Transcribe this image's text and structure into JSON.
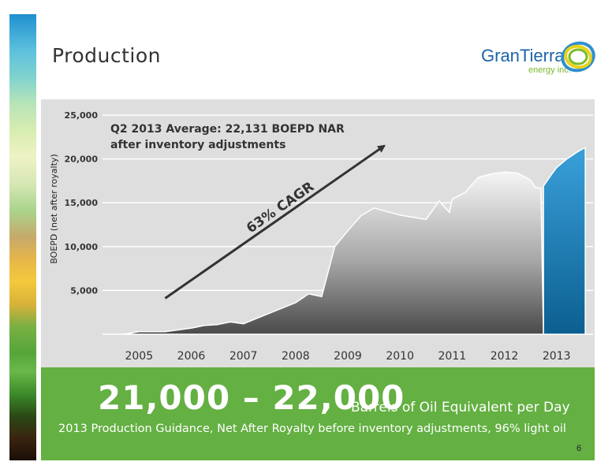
{
  "page": {
    "title": "Production",
    "page_number": "6"
  },
  "logo": {
    "name": "GranTierra",
    "sub": "energy inc.",
    "colors": {
      "blue": "#1c64a8",
      "green": "#7ab929",
      "ring_yellow": "#e6d31c",
      "ring_blue": "#2f8ecf"
    }
  },
  "banner": {
    "headline": "21,000 – 22,000",
    "unit": "Barrels of Oil Equivalent per Day",
    "subtitle": "2013 Production Guidance, Net After Royalty before inventory adjustments, 96% light oil",
    "color": "#64b043"
  },
  "chart_data": {
    "type": "area",
    "title": "",
    "ylabel": "BOEPD (net after royalty)",
    "xlabel": "",
    "ylim": [
      0,
      25000
    ],
    "yticks": [
      "5,000",
      "10,000",
      "15,000",
      "20,000",
      "25,000"
    ],
    "ytick_values": [
      5000,
      10000,
      15000,
      20000,
      25000
    ],
    "xticks": [
      "2005",
      "2006",
      "2007",
      "2008",
      "2009",
      "2010",
      "2011",
      "2012",
      "2013"
    ],
    "xtick_values": [
      2005.0,
      2006.0,
      2007.0,
      2008.0,
      2009.0,
      2010.0,
      2011.0,
      2012.0,
      2013.0
    ],
    "xlim": [
      2004.3,
      2013.7
    ],
    "grid": true,
    "annotations": [
      {
        "text": "Q2 2013 Average: 22,131 BOEPD NAR",
        "role": "headline-line-1"
      },
      {
        "text": "after inventory adjustments",
        "role": "headline-line-2"
      },
      {
        "text": "63% CAGR",
        "role": "trend-label"
      }
    ],
    "trend_arrow": {
      "from": [
        2005.5,
        4100
      ],
      "to": [
        2009.7,
        21500
      ]
    },
    "series": [
      {
        "color": "#888888",
        "x": [
          2004.7,
          2005.0,
          2005.5,
          2006.0,
          2006.25,
          2006.5,
          2006.75,
          2007.0,
          2007.5,
          2008.0,
          2008.25,
          2008.5,
          2008.75,
          2009.0,
          2009.25,
          2009.5,
          2009.75,
          2010.0,
          2010.5,
          2010.75,
          2010.95,
          2011.0,
          2011.25,
          2011.5,
          2011.75,
          2012.0,
          2012.25,
          2012.5,
          2012.6,
          2012.7,
          2012.75
        ],
        "y": [
          0,
          300,
          300,
          700,
          1000,
          1100,
          1400,
          1200,
          2400,
          3600,
          4600,
          4300,
          10000,
          11800,
          13500,
          14400,
          14000,
          13600,
          13100,
          15200,
          13900,
          15400,
          16200,
          17900,
          18300,
          18500,
          18400,
          17600,
          16700,
          16700,
          0
        ]
      },
      {
        "color": "#1f7fb4",
        "x": [
          2012.75,
          2012.75,
          2012.9,
          2013.0,
          2013.2,
          2013.4,
          2013.55,
          2013.55
        ],
        "y": [
          0,
          16900,
          18200,
          19000,
          20000,
          20800,
          21300,
          0
        ]
      }
    ]
  }
}
